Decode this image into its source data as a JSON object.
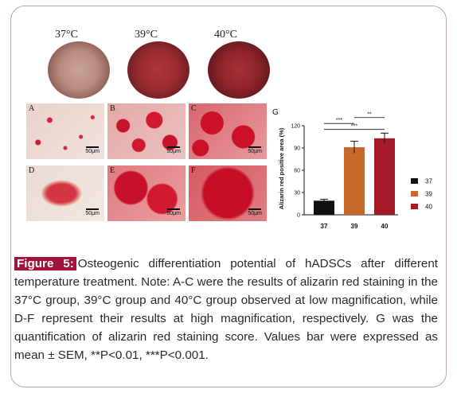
{
  "dishes": [
    "37°C",
    "39°C",
    "40°C"
  ],
  "panels": [
    {
      "letter": "A",
      "scale": "50μm"
    },
    {
      "letter": "B",
      "scale": "50μm"
    },
    {
      "letter": "C",
      "scale": "50μm"
    },
    {
      "letter": "D",
      "scale": "50μm"
    },
    {
      "letter": "E",
      "scale": "50μm"
    },
    {
      "letter": "F",
      "scale": "50μm"
    }
  ],
  "chart_data": {
    "type": "bar",
    "panel_letter": "G",
    "categories": [
      "37",
      "39",
      "40"
    ],
    "values": [
      19,
      91,
      103
    ],
    "errors": [
      2,
      8,
      7
    ],
    "colors": [
      "#111111",
      "#c8682a",
      "#a31a28"
    ],
    "ylabel": "Alizarin red positive area (%)",
    "ylim": [
      0,
      120
    ],
    "yticks": [
      0,
      30,
      60,
      90,
      120
    ],
    "legend": [
      "37",
      "39",
      "40"
    ],
    "significance": [
      {
        "from": 0,
        "to": 2,
        "label": "***"
      },
      {
        "from": 0,
        "to": 1,
        "label": "***"
      },
      {
        "from": 1,
        "to": 2,
        "label": "**"
      }
    ]
  },
  "caption": {
    "tag": "Figure 5:",
    "text": "Osteogenic differentiation potential of hADSCs after different temperature treatment. Note: A-C were the results of alizarin red staining in the 37°C group, 39°C group and 40°C group observed at low magnification, while D-F represent their results at high magnification, respectively. G was the quantification of alizarin red staining score. Values bar were expressed as mean ± SEM, **P<0.01, ***P<0.001."
  }
}
